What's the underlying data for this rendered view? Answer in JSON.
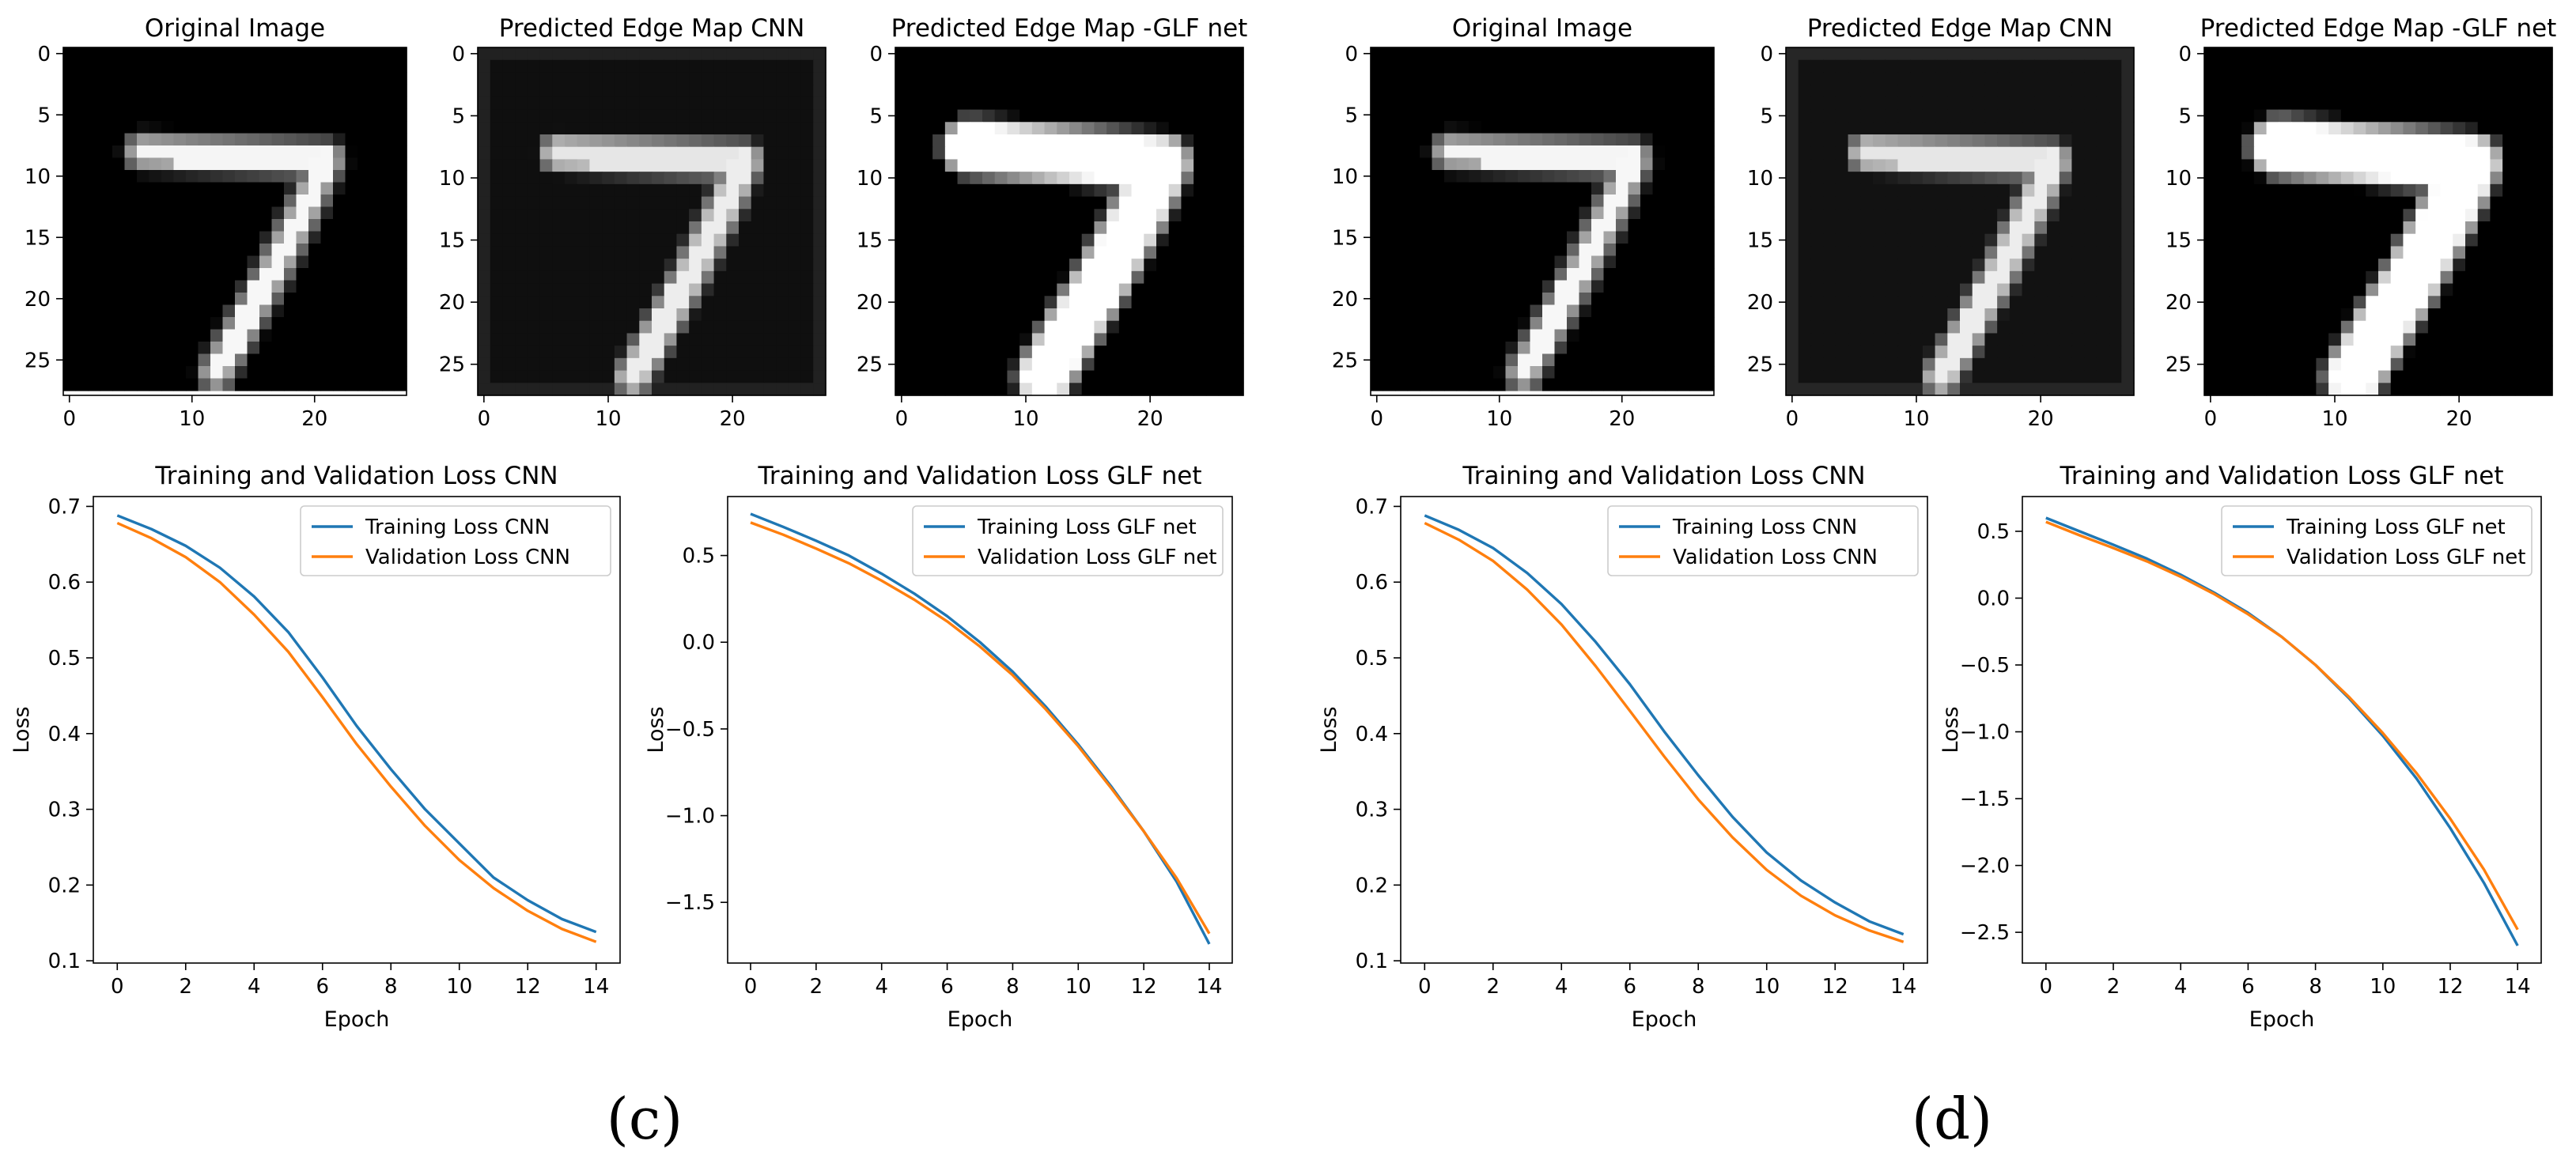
{
  "colors": {
    "series1": "#1f77b4",
    "series2": "#ff7f0e",
    "axis": "#000000",
    "background": "#ffffff"
  },
  "captions": [
    "(c)",
    "(d)"
  ],
  "chart_data": [
    {
      "type": "heatmap",
      "panel": "c",
      "title": "Original Image",
      "xlim": [
        -0.5,
        27.5
      ],
      "ylim": [
        27.5,
        -0.5
      ],
      "xticks": [
        "0",
        "10",
        "20"
      ],
      "yticks": [
        "0",
        "5",
        "10",
        "15",
        "20",
        "25"
      ],
      "colormap": "gray",
      "strokes": [
        {
          "points": [
            [
              6,
              8
            ],
            [
              21,
              8.6
            ]
          ],
          "width": 1.8,
          "intensity": 0.96,
          "edge": 0.3
        },
        {
          "points": [
            [
              21,
              8.6
            ],
            [
              19.5,
              12
            ],
            [
              16.5,
              18
            ],
            [
              14,
              22.5
            ],
            [
              12,
              26
            ]
          ],
          "width": 1.7,
          "intensity": 0.97,
          "edge": 0.3
        }
      ]
    },
    {
      "type": "heatmap",
      "panel": "c",
      "title": "Predicted Edge Map CNN",
      "xlim": [
        -0.5,
        27.5
      ],
      "ylim": [
        27.5,
        -0.5
      ],
      "xticks": [
        "0",
        "10",
        "20"
      ],
      "yticks": [
        "0",
        "5",
        "10",
        "15",
        "20",
        "25"
      ],
      "colormap": "gray",
      "background": 0.06,
      "frame": 0.13,
      "strokes": [
        {
          "points": [
            [
              6,
              8
            ],
            [
              21,
              8.6
            ]
          ],
          "width": 1.8,
          "intensity": 0.9,
          "edge": 0.6
        },
        {
          "points": [
            [
              21,
              8.6
            ],
            [
              19.5,
              12
            ],
            [
              16.5,
              18
            ],
            [
              14,
              22.5
            ],
            [
              12,
              26
            ]
          ],
          "width": 1.7,
          "intensity": 0.93,
          "edge": 0.6
        }
      ]
    },
    {
      "type": "heatmap",
      "panel": "c",
      "title": "Predicted Edge Map -GLF net",
      "xlim": [
        -0.5,
        27.5
      ],
      "ylim": [
        27.5,
        -0.5
      ],
      "xticks": [
        "0",
        "10",
        "20"
      ],
      "yticks": [
        "0",
        "5",
        "10",
        "15",
        "20",
        "25"
      ],
      "colormap": "gray",
      "strokes": [
        {
          "points": [
            [
              5.5,
              7.5
            ],
            [
              21,
              8.8
            ]
          ],
          "width": 3.3,
          "intensity": 1.0,
          "edge": 1.0
        },
        {
          "points": [
            [
              21,
              8.8
            ],
            [
              19,
              13
            ],
            [
              16,
              18.5
            ],
            [
              13.5,
              22.5
            ],
            [
              11.5,
              26
            ]
          ],
          "width": 3.3,
          "intensity": 1.0,
          "edge": 1.0
        }
      ]
    },
    {
      "type": "line",
      "panel": "c",
      "title": "Training and Validation Loss CNN",
      "xlabel": "Epoch",
      "ylabel": "Loss",
      "xlim": [
        -0.7,
        14.7
      ],
      "ylim": [
        0.097,
        0.713
      ],
      "xticks": [
        0,
        2,
        4,
        6,
        8,
        10,
        12,
        14
      ],
      "yticks": [
        0.1,
        0.2,
        0.3,
        0.4,
        0.5,
        0.6,
        0.7
      ],
      "legend_position": "upper-right",
      "x": [
        0,
        1,
        2,
        3,
        4,
        5,
        6,
        7,
        8,
        9,
        10,
        11,
        12,
        13,
        14
      ],
      "series": [
        {
          "name": "Training Loss CNN",
          "values": [
            0.688,
            0.67,
            0.648,
            0.619,
            0.581,
            0.534,
            0.474,
            0.41,
            0.353,
            0.3,
            0.255,
            0.21,
            0.18,
            0.155,
            0.138
          ]
        },
        {
          "name": "Validation Loss  CNN",
          "values": [
            0.678,
            0.658,
            0.633,
            0.6,
            0.557,
            0.508,
            0.448,
            0.386,
            0.33,
            0.278,
            0.233,
            0.196,
            0.166,
            0.142,
            0.125
          ]
        }
      ]
    },
    {
      "type": "line",
      "panel": "c",
      "title": "Training and Validation Loss GLF net",
      "xlabel": "Epoch",
      "ylabel": "Loss",
      "xlim": [
        -0.7,
        14.7
      ],
      "ylim": [
        -1.85,
        0.84
      ],
      "xticks": [
        0,
        2,
        4,
        6,
        8,
        10,
        12,
        14
      ],
      "yticks": [
        -1.5,
        -1.0,
        -0.5,
        0.0,
        0.5
      ],
      "legend_position": "upper-right",
      "x": [
        0,
        1,
        2,
        3,
        4,
        5,
        6,
        7,
        8,
        9,
        10,
        11,
        12,
        13,
        14
      ],
      "series": [
        {
          "name": "Training Loss GLF net",
          "values": [
            0.74,
            0.665,
            0.585,
            0.5,
            0.395,
            0.28,
            0.15,
            0.0,
            -0.17,
            -0.37,
            -0.59,
            -0.83,
            -1.09,
            -1.38,
            -1.74
          ]
        },
        {
          "name": "Validation Loss GLF net",
          "values": [
            0.69,
            0.62,
            0.54,
            0.455,
            0.355,
            0.245,
            0.12,
            -0.025,
            -0.19,
            -0.385,
            -0.6,
            -0.84,
            -1.09,
            -1.36,
            -1.68
          ]
        }
      ]
    },
    {
      "type": "heatmap",
      "panel": "d",
      "title": "Original Image",
      "xlim": [
        -0.5,
        27.5
      ],
      "ylim": [
        27.5,
        -0.5
      ],
      "xticks": [
        "0",
        "10",
        "20"
      ],
      "yticks": [
        "0",
        "5",
        "10",
        "15",
        "20",
        "25"
      ],
      "colormap": "gray",
      "strokes": [
        {
          "points": [
            [
              6,
              8
            ],
            [
              21,
              8.6
            ]
          ],
          "width": 1.8,
          "intensity": 0.96,
          "edge": 0.3
        },
        {
          "points": [
            [
              21,
              8.6
            ],
            [
              19.5,
              12
            ],
            [
              16.5,
              18
            ],
            [
              14,
              22.5
            ],
            [
              12,
              26
            ]
          ],
          "width": 1.7,
          "intensity": 0.97,
          "edge": 0.3
        }
      ]
    },
    {
      "type": "heatmap",
      "panel": "d",
      "title": "Predicted Edge Map CNN",
      "xlim": [
        -0.5,
        27.5
      ],
      "ylim": [
        27.5,
        -0.5
      ],
      "xticks": [
        "0",
        "10",
        "20"
      ],
      "yticks": [
        "0",
        "5",
        "10",
        "15",
        "20",
        "25"
      ],
      "colormap": "gray",
      "background": 0.07,
      "frame": 0.15,
      "strokes": [
        {
          "points": [
            [
              6,
              8
            ],
            [
              21,
              8.6
            ]
          ],
          "width": 1.8,
          "intensity": 0.9,
          "edge": 0.6
        },
        {
          "points": [
            [
              21,
              8.6
            ],
            [
              19.5,
              12
            ],
            [
              16.5,
              18
            ],
            [
              14,
              22.5
            ],
            [
              12,
              26
            ]
          ],
          "width": 1.7,
          "intensity": 0.93,
          "edge": 0.6
        }
      ]
    },
    {
      "type": "heatmap",
      "panel": "d",
      "title": "Predicted Edge Map -GLF net",
      "xlim": [
        -0.5,
        27.5
      ],
      "ylim": [
        27.5,
        -0.5
      ],
      "xticks": [
        "0",
        "10",
        "20"
      ],
      "yticks": [
        "0",
        "5",
        "10",
        "15",
        "20",
        "25"
      ],
      "colormap": "gray",
      "strokes": [
        {
          "points": [
            [
              5.5,
              7.5
            ],
            [
              21,
              8.8
            ]
          ],
          "width": 3.5,
          "intensity": 1.0,
          "edge": 1.0
        },
        {
          "points": [
            [
              21,
              8.8
            ],
            [
              19,
              13
            ],
            [
              16,
              18.5
            ],
            [
              13.5,
              22.5
            ],
            [
              11.5,
              26
            ]
          ],
          "width": 3.5,
          "intensity": 1.0,
          "edge": 1.0
        }
      ]
    },
    {
      "type": "line",
      "panel": "d",
      "title": "Training and Validation Loss CNN",
      "xlabel": "Epoch",
      "ylabel": "Loss",
      "xlim": [
        -0.7,
        14.7
      ],
      "ylim": [
        0.097,
        0.713
      ],
      "xticks": [
        0,
        2,
        4,
        6,
        8,
        10,
        12,
        14
      ],
      "yticks": [
        0.1,
        0.2,
        0.3,
        0.4,
        0.5,
        0.6,
        0.7
      ],
      "legend_position": "upper-right",
      "x": [
        0,
        1,
        2,
        3,
        4,
        5,
        6,
        7,
        8,
        9,
        10,
        11,
        12,
        13,
        14
      ],
      "series": [
        {
          "name": "Training Loss CNN",
          "values": [
            0.688,
            0.669,
            0.645,
            0.612,
            0.571,
            0.521,
            0.465,
            0.403,
            0.345,
            0.29,
            0.243,
            0.206,
            0.177,
            0.152,
            0.135
          ]
        },
        {
          "name": "Validation Loss  CNN",
          "values": [
            0.678,
            0.656,
            0.628,
            0.59,
            0.544,
            0.489,
            0.43,
            0.37,
            0.313,
            0.263,
            0.22,
            0.186,
            0.16,
            0.14,
            0.125
          ]
        }
      ]
    },
    {
      "type": "line",
      "panel": "d",
      "title": "Training and Validation Loss GLF net",
      "xlabel": "Epoch",
      "ylabel": "Loss",
      "xlim": [
        -0.7,
        14.7
      ],
      "ylim": [
        -2.73,
        0.76
      ],
      "xticks": [
        0,
        2,
        4,
        6,
        8,
        10,
        12,
        14
      ],
      "yticks": [
        -2.5,
        -2.0,
        -1.5,
        -1.0,
        -0.5,
        0.0,
        0.5
      ],
      "legend_position": "upper-right",
      "x": [
        0,
        1,
        2,
        3,
        4,
        5,
        6,
        7,
        8,
        9,
        10,
        11,
        12,
        13,
        14
      ],
      "series": [
        {
          "name": "Training Loss GLF net",
          "values": [
            0.6,
            0.5,
            0.4,
            0.295,
            0.175,
            0.04,
            -0.11,
            -0.29,
            -0.5,
            -0.75,
            -1.03,
            -1.35,
            -1.72,
            -2.13,
            -2.6
          ]
        },
        {
          "name": "Validation Loss GLF net",
          "values": [
            0.57,
            0.47,
            0.375,
            0.275,
            0.16,
            0.03,
            -0.12,
            -0.29,
            -0.5,
            -0.74,
            -1.01,
            -1.31,
            -1.65,
            -2.03,
            -2.48
          ]
        }
      ]
    }
  ]
}
